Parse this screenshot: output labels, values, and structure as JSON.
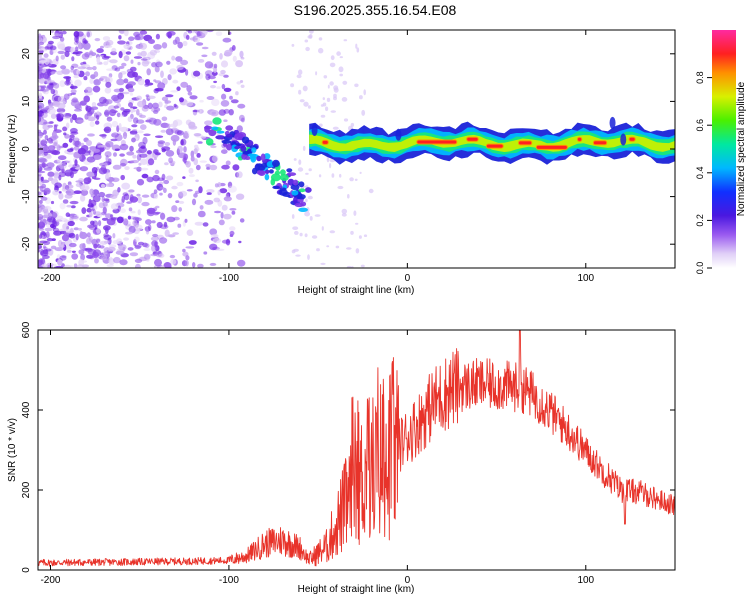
{
  "title": "S196.2025.355.16.54.E08",
  "chart_data": [
    {
      "type": "heatmap",
      "name": "spectrogram",
      "xlabel": "Height of straight line (km)",
      "ylabel": "Frequency (Hz)",
      "xlim": [
        -207,
        150
      ],
      "ylim": [
        -25,
        25
      ],
      "xticks": [
        -200,
        -100,
        0,
        100
      ],
      "yticks": [
        -20,
        -10,
        0,
        10,
        20
      ],
      "colorbar": {
        "label": "Normalized spectral amplitude",
        "range": [
          0,
          1
        ],
        "ticks": [
          "0.0",
          "0.2",
          "0.4",
          "0.6",
          "0.8"
        ],
        "colors": [
          "#ffffff",
          "#c8a8f0",
          "#7a2ee8",
          "#2a2af0",
          "#00c8ff",
          "#18e87a",
          "#b8f000",
          "#ff9a00",
          "#ff2a2a",
          "#ff2aa0"
        ]
      },
      "features": {
        "noise_region_km": [
          -207,
          -100
        ],
        "descending_branch": [
          [
            -110,
            4
          ],
          [
            -95,
            1.5
          ],
          [
            -85,
            -2
          ],
          [
            -75,
            -5
          ],
          [
            -65,
            -8
          ],
          [
            -58,
            -11
          ]
        ],
        "ducted_line_km": [
          -55,
          150
        ],
        "ducted_line_frequency_hz": 1.2
      }
    },
    {
      "type": "line",
      "name": "snr",
      "xlabel": "Height of straight line (km)",
      "ylabel": "SNR (10 * v/v)",
      "xlim": [
        -207,
        150
      ],
      "ylim": [
        0,
        600
      ],
      "xticks": [
        -200,
        -100,
        0,
        100
      ],
      "yticks": [
        0,
        200,
        400,
        600
      ],
      "color": "#e8332a",
      "envelope": {
        "x": [
          -207,
          -160,
          -120,
          -100,
          -90,
          -80,
          -70,
          -60,
          -55,
          -45,
          -35,
          -25,
          -15,
          -5,
          5,
          15,
          25,
          40,
          55,
          65,
          75,
          90,
          105,
          120,
          130,
          150
        ],
        "y": [
          18,
          20,
          22,
          24,
          35,
          65,
          75,
          55,
          25,
          60,
          160,
          230,
          280,
          310,
          360,
          420,
          455,
          465,
          460,
          455,
          420,
          350,
          270,
          200,
          195,
          160
        ]
      }
    }
  ]
}
